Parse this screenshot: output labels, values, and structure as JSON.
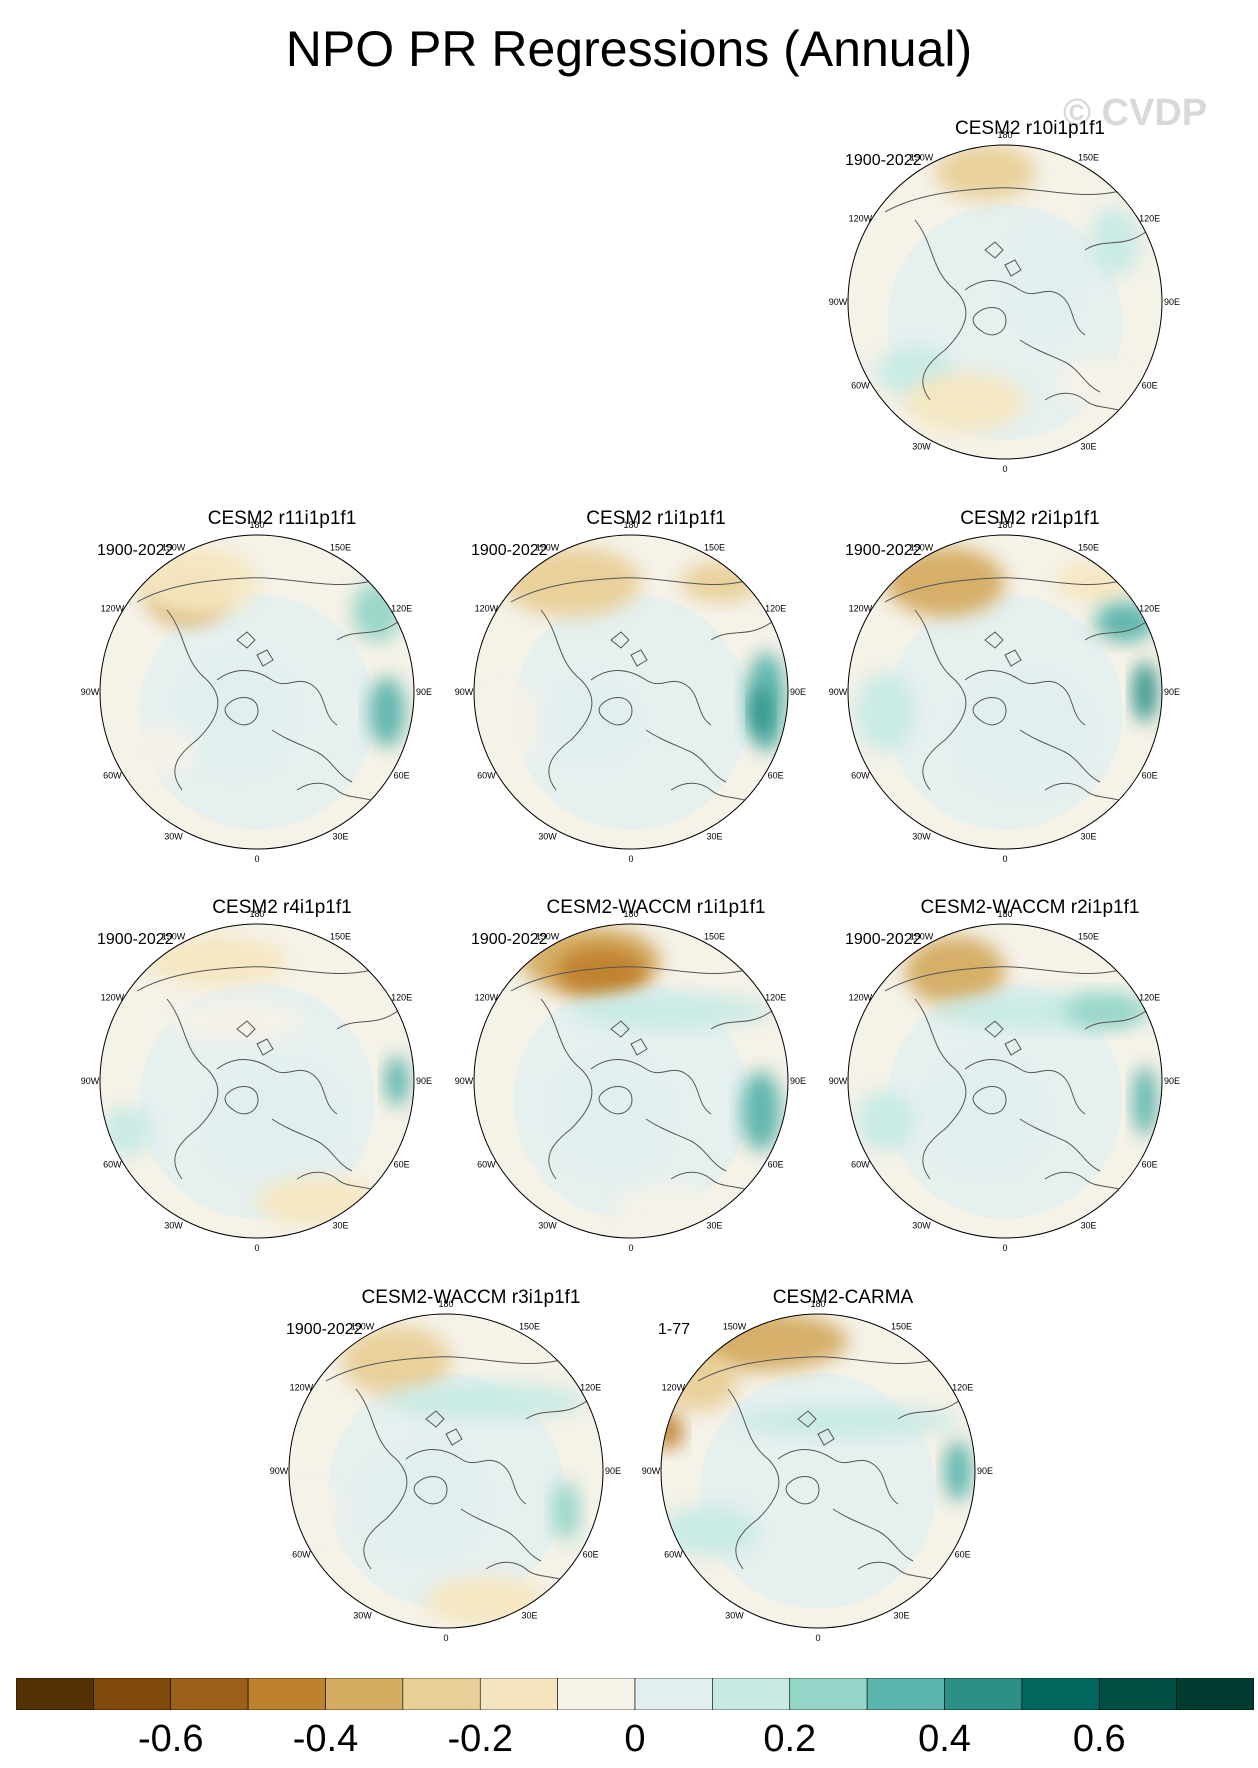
{
  "title": "NPO PR Regressions (Annual)",
  "watermark": "© CVDP",
  "chart_data": {
    "type": "heatmap",
    "title": "NPO PR Regressions (Annual)",
    "projection": "north polar stereographic",
    "longitude_labels": [
      "180",
      "150E",
      "120E",
      "90E",
      "60E",
      "30E",
      "0",
      "30W",
      "60W",
      "90W",
      "120W",
      "150W"
    ],
    "panels": [
      {
        "name": "CESM2 r10i1p1f1",
        "period": "1900-2022"
      },
      {
        "name": "CESM2 r11i1p1f1",
        "period": "1900-2022"
      },
      {
        "name": "CESM2 r1i1p1f1",
        "period": "1900-2022"
      },
      {
        "name": "CESM2 r2i1p1f1",
        "period": "1900-2022"
      },
      {
        "name": "CESM2 r4i1p1f1",
        "period": "1900-2022"
      },
      {
        "name": "CESM2-WACCM r1i1p1f1",
        "period": "1900-2022"
      },
      {
        "name": "CESM2-WACCM r2i1p1f1",
        "period": "1900-2022"
      },
      {
        "name": "CESM2-WACCM r3i1p1f1",
        "period": "1900-2022"
      },
      {
        "name": "CESM2-CARMA",
        "period": "1-77"
      }
    ],
    "colorbar": {
      "levels": [
        -0.7,
        -0.6,
        -0.5,
        -0.4,
        -0.3,
        -0.2,
        -0.1,
        0,
        0.1,
        0.2,
        0.3,
        0.4,
        0.5,
        0.6,
        0.7
      ],
      "tick_labels": [
        "-0.6",
        "-0.4",
        "-0.2",
        "0",
        "0.2",
        "0.4",
        "0.6"
      ],
      "colors": [
        "#543005",
        "#7f4a0a",
        "#9c6119",
        "#bf812d",
        "#d4ac62",
        "#e8cf97",
        "#f5e6c0",
        "#f5f2e8",
        "#e2eff0",
        "#c7eae5",
        "#95d5c8",
        "#5ab4ac",
        "#2c8f85",
        "#01665e",
        "#004f45",
        "#003c30"
      ]
    }
  }
}
